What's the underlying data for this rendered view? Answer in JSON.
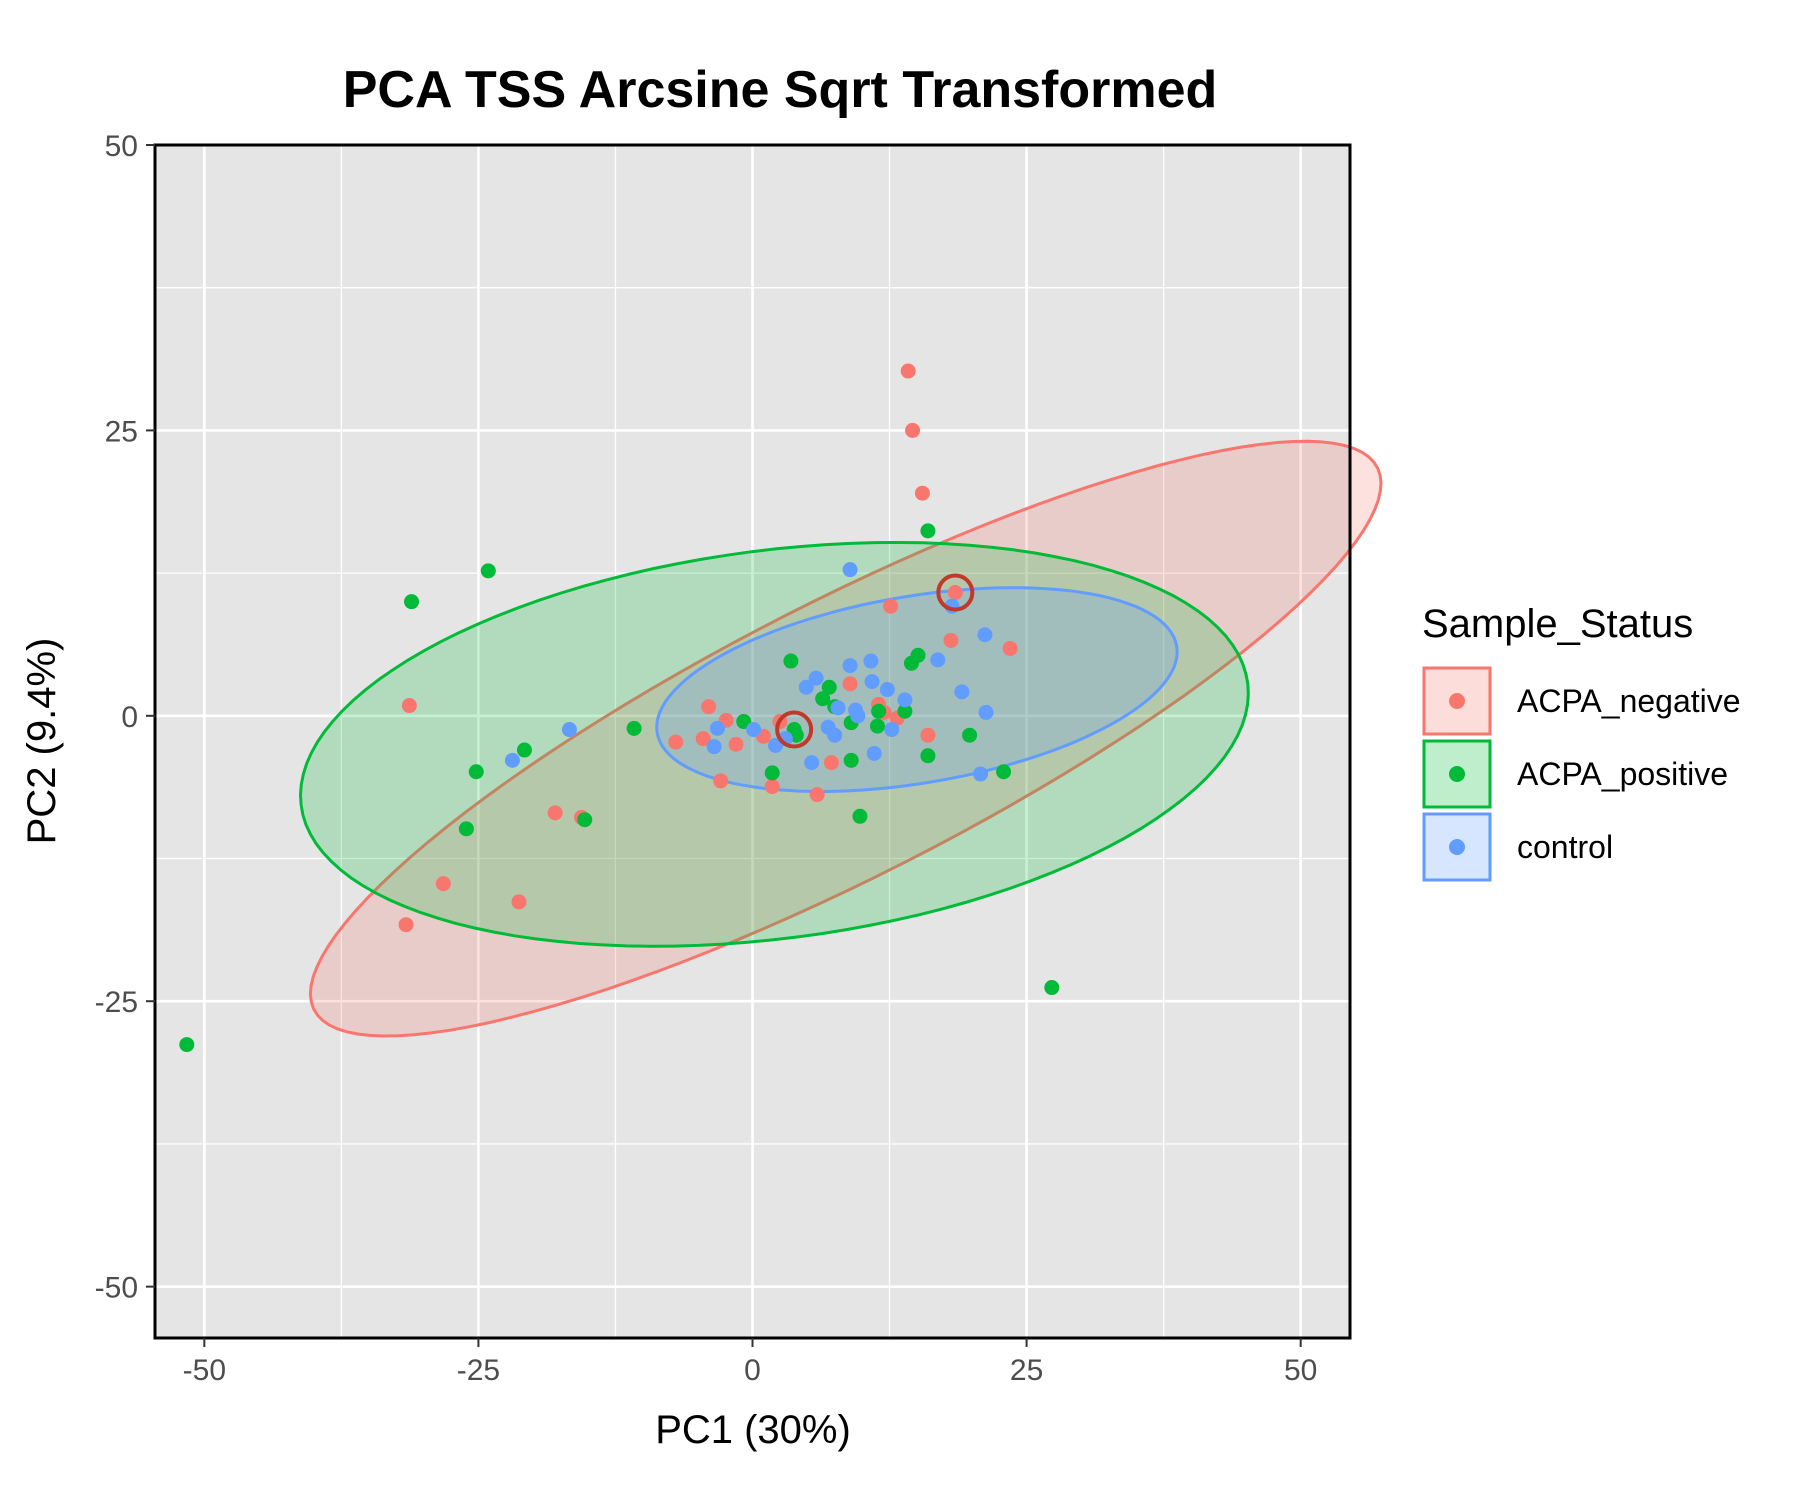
{
  "chart_data": {
    "type": "scatter",
    "title": "PCA TSS Arcsine Sqrt Transformed",
    "xlabel": "PC1 (30%)",
    "ylabel": "PC2 (9.4%)",
    "xlim": [
      -54.5,
      54.5
    ],
    "ylim": [
      -54.5,
      50
    ],
    "xticks": [
      -50,
      -25,
      0,
      25,
      50
    ],
    "yticks": [
      -50,
      -25,
      0,
      25,
      50
    ],
    "xtick_labels": [
      "-50",
      "-25",
      "0",
      "25",
      "50"
    ],
    "ytick_labels": [
      "-50",
      "-25",
      "0",
      "25",
      "50"
    ],
    "grid": true,
    "legend": {
      "title": "Sample_Status",
      "position": "right"
    },
    "series": [
      {
        "name": "ACPA_negative",
        "color": "#F8766D",
        "points": [
          [
            14.2,
            30.2
          ],
          [
            14.6,
            25.0
          ],
          [
            15.5,
            19.5
          ],
          [
            18.5,
            10.8
          ],
          [
            12.6,
            9.6
          ],
          [
            18.1,
            6.6
          ],
          [
            23.5,
            5.9
          ],
          [
            8.9,
            2.8
          ],
          [
            -4.0,
            0.8
          ],
          [
            -2.4,
            -0.4
          ],
          [
            -7.0,
            -2.3
          ],
          [
            -4.5,
            -2.0
          ],
          [
            -1.5,
            -2.5
          ],
          [
            1.0,
            -1.8
          ],
          [
            -2.9,
            -5.7
          ],
          [
            1.8,
            -6.2
          ],
          [
            5.9,
            -6.9
          ],
          [
            7.2,
            -4.1
          ],
          [
            16.0,
            -1.7
          ],
          [
            12.0,
            0.3
          ],
          [
            -31.3,
            0.9
          ],
          [
            -18.0,
            -8.5
          ],
          [
            -15.6,
            -8.9
          ],
          [
            -28.2,
            -14.7
          ],
          [
            -21.3,
            -16.3
          ],
          [
            -31.6,
            -18.3
          ],
          [
            2.5,
            -0.5
          ],
          [
            11.5,
            1.0
          ],
          [
            13.2,
            -0.2
          ]
        ],
        "ellipse": {
          "center": [
            8.5,
            -2.0
          ],
          "rx": 54.0,
          "ry": 12.1,
          "angle_deg": 26.0
        },
        "highlighted_point": [
          18.5,
          10.8
        ]
      },
      {
        "name": "ACPA_positive",
        "color": "#00BA38",
        "points": [
          [
            16.0,
            16.2
          ],
          [
            -31.1,
            10.0
          ],
          [
            -24.1,
            12.7
          ],
          [
            15.1,
            5.3
          ],
          [
            14.5,
            4.6
          ],
          [
            3.5,
            4.8
          ],
          [
            7.0,
            2.5
          ],
          [
            6.4,
            1.5
          ],
          [
            7.5,
            0.8
          ],
          [
            11.5,
            0.4
          ],
          [
            13.9,
            0.4
          ],
          [
            -0.8,
            -0.5
          ],
          [
            3.8,
            -1.2
          ],
          [
            4.0,
            -1.7
          ],
          [
            9.0,
            -0.6
          ],
          [
            11.4,
            -0.9
          ],
          [
            19.8,
            -1.7
          ],
          [
            16.0,
            -3.5
          ],
          [
            9.0,
            -3.9
          ],
          [
            1.8,
            -5.0
          ],
          [
            9.8,
            -8.8
          ],
          [
            22.9,
            -4.9
          ],
          [
            -10.8,
            -1.1
          ],
          [
            -20.8,
            -3.0
          ],
          [
            -25.2,
            -4.9
          ],
          [
            -15.3,
            -9.1
          ],
          [
            -26.1,
            -9.9
          ],
          [
            27.3,
            -23.8
          ],
          [
            -51.6,
            -28.8
          ]
        ],
        "ellipse": {
          "center": [
            2.0,
            -2.5
          ],
          "rx": 43.5,
          "ry": 17.0,
          "angle_deg": 7.0
        },
        "highlighted_point": [
          3.8,
          -1.2
        ]
      },
      {
        "name": "control",
        "color": "#619CFF",
        "points": [
          [
            8.9,
            12.8
          ],
          [
            18.2,
            9.6
          ],
          [
            21.2,
            7.1
          ],
          [
            16.9,
            4.9
          ],
          [
            10.8,
            4.8
          ],
          [
            8.9,
            4.4
          ],
          [
            5.8,
            3.3
          ],
          [
            10.9,
            3.0
          ],
          [
            4.9,
            2.5
          ],
          [
            12.3,
            2.3
          ],
          [
            19.1,
            2.1
          ],
          [
            13.9,
            1.4
          ],
          [
            7.8,
            0.7
          ],
          [
            9.4,
            0.5
          ],
          [
            21.3,
            0.3
          ],
          [
            9.6,
            0.0
          ],
          [
            12.7,
            -1.2
          ],
          [
            0.1,
            -1.2
          ],
          [
            -3.2,
            -1.1
          ],
          [
            -3.5,
            -2.7
          ],
          [
            2.1,
            -2.6
          ],
          [
            -16.7,
            -1.2
          ],
          [
            -21.9,
            -3.9
          ],
          [
            7.5,
            -1.7
          ],
          [
            11.1,
            -3.3
          ],
          [
            5.4,
            -4.1
          ],
          [
            20.8,
            -5.1
          ],
          [
            6.9,
            -1.0
          ],
          [
            3.0,
            -2.0
          ]
        ],
        "ellipse": {
          "center": [
            15.0,
            2.3
          ],
          "rx": 24.0,
          "ry": 8.2,
          "angle_deg": 9.0
        }
      }
    ]
  }
}
